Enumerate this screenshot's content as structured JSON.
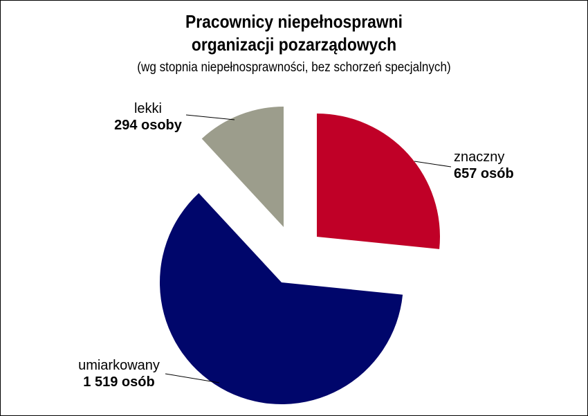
{
  "chart_data": {
    "type": "pie",
    "title_lines": [
      "Pracownicy niepełnosprawni",
      "organizacji pozarządowych"
    ],
    "subtitle": "(wg stopnia niepełnosprawności, bez schorzeń specjalnych)",
    "slices": [
      {
        "category": "znaczny",
        "value": 657,
        "value_label": "657 osób",
        "color": "#c00027"
      },
      {
        "category": "umiarkowany",
        "value": 1519,
        "value_label": "1 519 osób",
        "color": "#00066b"
      },
      {
        "category": "lekki",
        "value": 294,
        "value_label": "294 osoby",
        "color": "#9c9d8c"
      }
    ],
    "exploded": true,
    "legend": "none"
  }
}
